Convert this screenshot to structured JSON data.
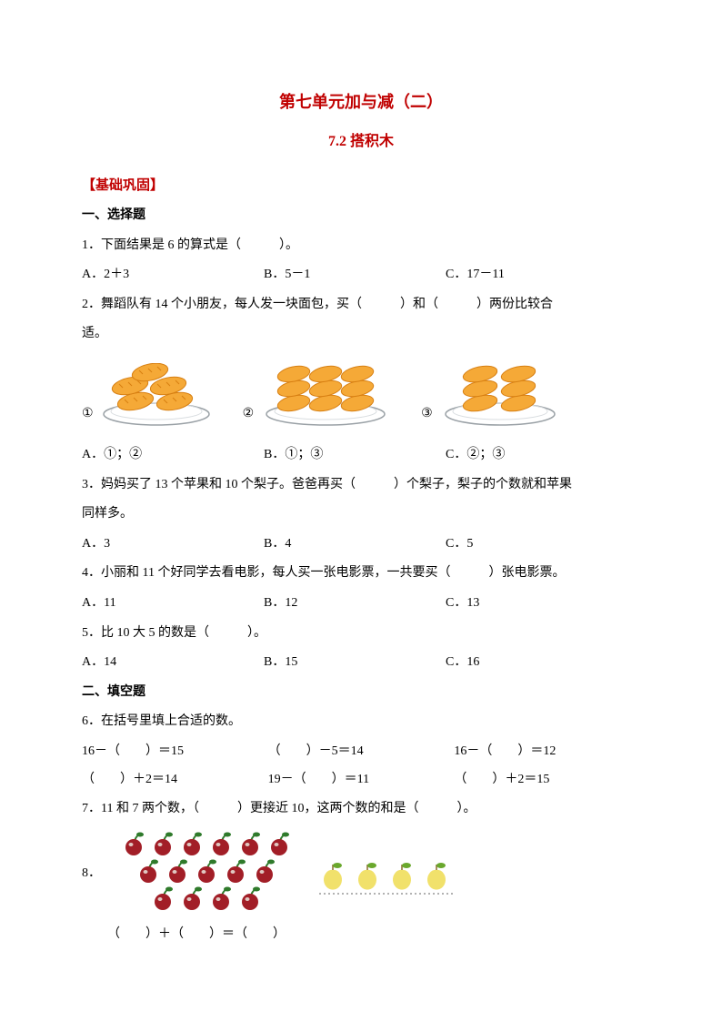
{
  "title_main": "第七单元加与减（二）",
  "title_sub": "7.2 搭积木",
  "section_basic": "【基础巩固】",
  "heading_choice": "一、选择题",
  "q1": {
    "text": "1．下面结果是 6 的算式是（　　　）。",
    "a": "A．2＋3",
    "b": "B．5－1",
    "c": "C．17－11"
  },
  "q2": {
    "text": "2．舞蹈队有 14 个小朋友，每人发一块面包，买（　　　）和（　　　）两份比较合",
    "text2": "适。",
    "a": "A．①；②",
    "b": "B．①；③",
    "c": "C．②；③",
    "labels": {
      "l1": "①",
      "l2": "②",
      "l3": "③"
    }
  },
  "q3": {
    "text": "3．妈妈买了 13 个苹果和 10 个梨子。爸爸再买（　　　）个梨子，梨子的个数就和苹果",
    "text2": "同样多。",
    "a": "A．3",
    "b": "B．4",
    "c": "C．5"
  },
  "q4": {
    "text": "4．小丽和 11 个好同学去看电影，每人买一张电影票，一共要买（　　　）张电影票。",
    "a": "A．11",
    "b": "B．12",
    "c": "C．13"
  },
  "q5": {
    "text": "5．比 10 大 5 的数是（　　　）。",
    "a": "A．14",
    "b": "B．15",
    "c": "C．16"
  },
  "heading_fill": "二、填空题",
  "q6": {
    "text": "6．在括号里填上合适的数。",
    "r1c1": "16－（　　）＝15",
    "r1c2": "（　　）－5＝14",
    "r1c3": "16－（　　）＝12",
    "r2c1": "（　　）＋2＝14",
    "r2c2": "19－（　　）＝11",
    "r2c3": "（　　）＋2＝15"
  },
  "q7": "7．11 和 7 两个数，（　　　）更接近 10，这两个数的和是（　　　）。",
  "q8": {
    "label": "8．",
    "eq": "（　　）＋（　　）＝（　　）"
  },
  "colors": {
    "red": "#c00000",
    "bread_fill": "#f5a937",
    "bread_stroke": "#d77f12",
    "plate_fill": "#ffffff",
    "plate_stroke": "#9aa1a6",
    "cherry": "#a21e27",
    "cherry_highlight": "#e0c7c1",
    "cherry_leaf": "#2f7a2b",
    "yapple_body": "#f1e16b",
    "yapple_leaf": "#6aa82d"
  }
}
